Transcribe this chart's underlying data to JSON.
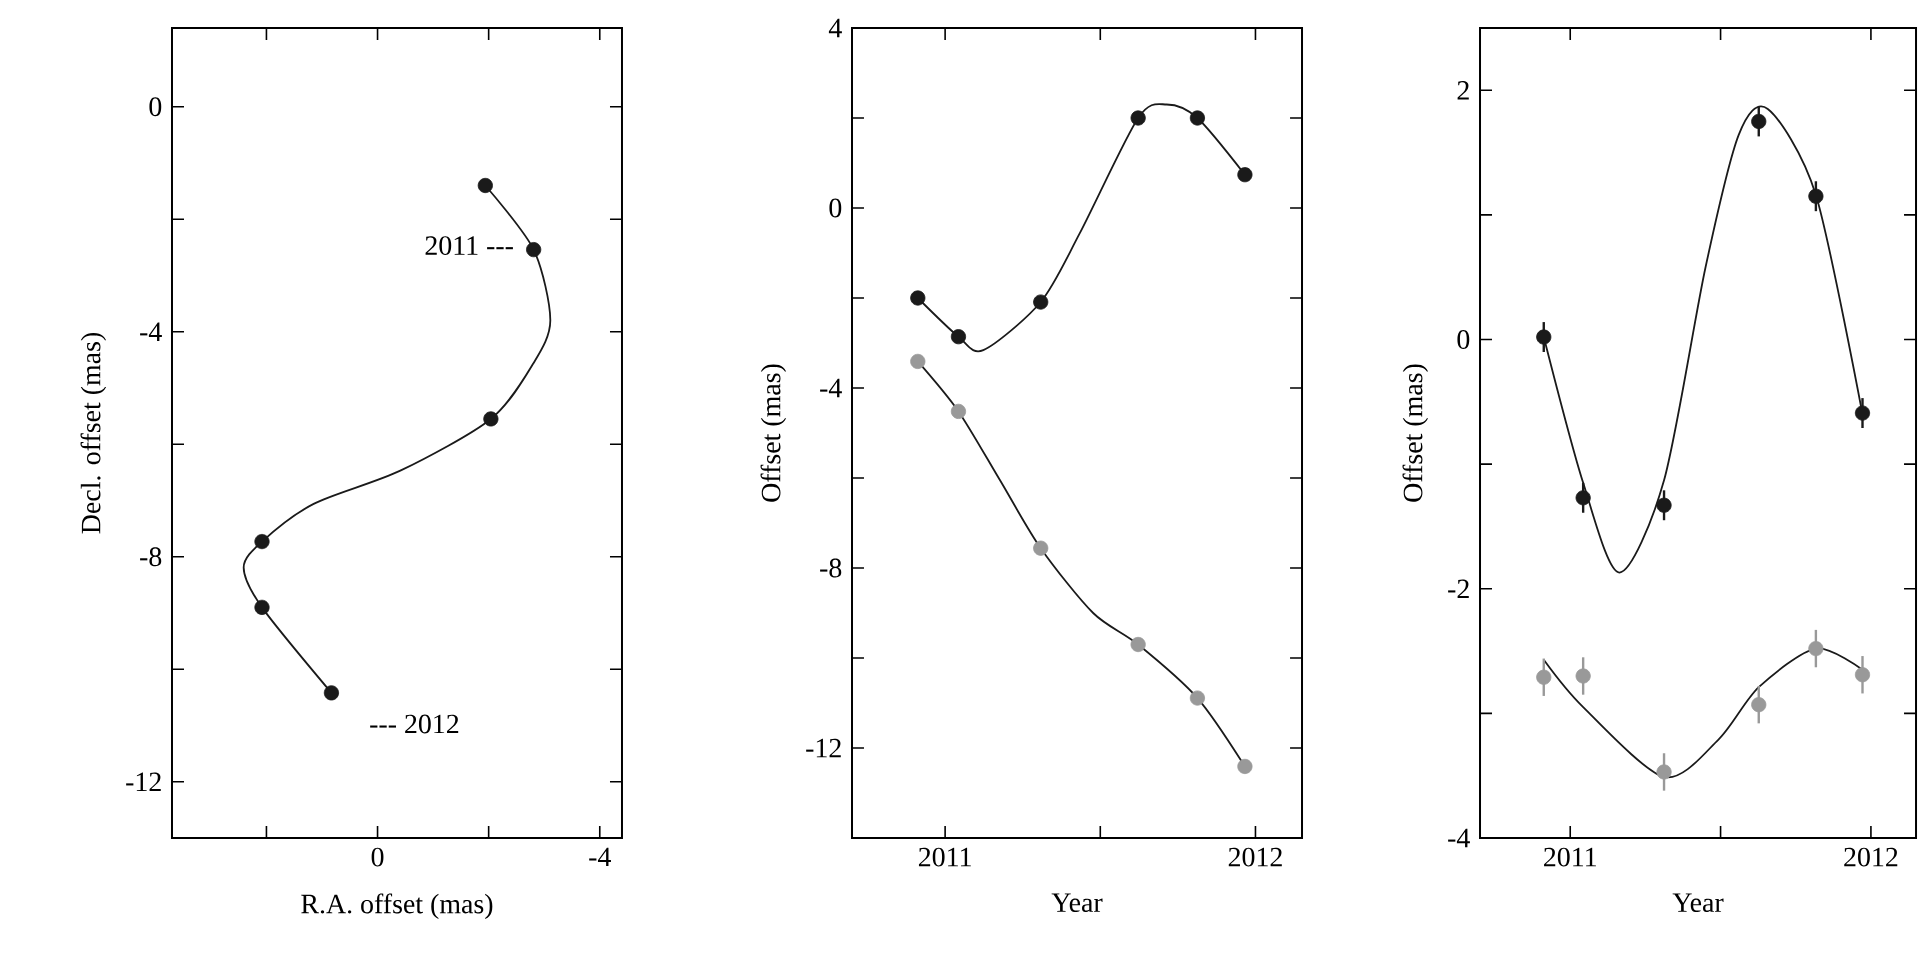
{
  "chart_data": [
    {
      "type": "scatter",
      "xlabel": "R.A. offset (mas)",
      "ylabel": "Decl. offset (mas)",
      "xlim": [
        3.7,
        -4.4
      ],
      "xticks": [
        {
          "value": 2,
          "label": null
        },
        0,
        {
          "value": -2,
          "label": null
        },
        -4
      ],
      "ylim": [
        -13,
        1.4
      ],
      "yticks": [
        0,
        {
          "value": -2,
          "label": null
        },
        -4,
        {
          "value": -6,
          "label": null
        },
        -8,
        {
          "value": -10,
          "label": null
        },
        -12
      ],
      "series": [
        {
          "type": "line",
          "marker": "none",
          "color": "#1a1a1a",
          "x": [
            -1.94,
            -2.81,
            -3.11,
            -2.8,
            -2.04,
            -0.41,
            1.15,
            2.08,
            2.41,
            2.08,
            0.83
          ],
          "values": [
            -1.4,
            -2.54,
            -3.8,
            -4.57,
            -5.55,
            -6.47,
            -7.06,
            -7.73,
            -8.19,
            -8.9,
            -10.42
          ]
        },
        {
          "marker": "circle",
          "color": "#1a1a1a",
          "x": [
            -1.94,
            -2.81,
            -2.04,
            2.08,
            2.08,
            0.83
          ],
          "values": [
            -1.4,
            -2.54,
            -5.55,
            -7.73,
            -8.9,
            -10.42
          ]
        }
      ],
      "annotations": [
        {
          "text": "2011 ---",
          "x": -2.81,
          "y": -2.54
        },
        {
          "text": "--- 2012",
          "x": 0.83,
          "y": -10.42
        }
      ]
    },
    {
      "type": "scatter",
      "xlabel": "Year",
      "ylabel": "Offset (mas)",
      "xlim": [
        2010.7,
        2012.15
      ],
      "xticks": [
        2011,
        {
          "value": 2011.5,
          "label": null
        },
        2012
      ],
      "ylim": [
        -14,
        4
      ],
      "yticks": [
        4,
        {
          "value": 2,
          "label": null
        },
        0,
        {
          "value": -2,
          "label": null
        },
        -4,
        {
          "value": -6,
          "label": null
        },
        -8,
        {
          "value": -10,
          "label": null
        },
        -12
      ],
      "series": [
        {
          "type": "line",
          "marker": "none",
          "color": "#1a1a1a",
          "x": [
            2010.912,
            2011.043,
            2011.123,
            2011.308,
            2011.434,
            2011.622,
            2011.714,
            2011.813,
            2011.966
          ],
          "values": [
            -2.0,
            -2.86,
            -3.16,
            -2.09,
            -0.56,
            2.0,
            2.3,
            2.0,
            0.74
          ]
        },
        {
          "type": "line",
          "marker": "none",
          "color": "#1a1a1a",
          "x": [
            2010.912,
            2011.043,
            2011.176,
            2011.308,
            2011.477,
            2011.622,
            2011.813,
            2011.966
          ],
          "values": [
            -3.41,
            -4.52,
            -6.04,
            -7.56,
            -9.0,
            -9.7,
            -10.89,
            -12.41
          ]
        },
        {
          "marker": "circle",
          "color": "#1a1a1a",
          "x": [
            2010.912,
            2011.043,
            2011.308,
            2011.622,
            2011.813,
            2011.966
          ],
          "values": [
            -2.0,
            -2.86,
            -2.09,
            2.0,
            2.0,
            0.74
          ]
        },
        {
          "marker": "circle",
          "color": "#999999",
          "x": [
            2010.912,
            2011.043,
            2011.308,
            2011.622,
            2011.813,
            2011.966
          ],
          "values": [
            -3.41,
            -4.52,
            -7.56,
            -9.7,
            -10.89,
            -12.41
          ]
        }
      ]
    },
    {
      "type": "scatter",
      "xlabel": "Year",
      "ylabel": "Offset (mas)",
      "xlim": [
        2010.7,
        2012.15
      ],
      "xticks": [
        2011,
        {
          "value": 2011.5,
          "label": null
        },
        2012
      ],
      "ylim": [
        -4,
        2.5
      ],
      "yticks": [
        2,
        {
          "value": 1,
          "label": null
        },
        0,
        {
          "value": -1,
          "label": null
        },
        -2,
        {
          "value": -3,
          "label": null
        },
        -4
      ],
      "series": [
        {
          "type": "line",
          "marker": "none",
          "color": "#1a1a1a",
          "x": [
            2010.912,
            2011.043,
            2011.164,
            2011.312,
            2011.45,
            2011.56,
            2011.657,
            2011.817,
            2011.972
          ],
          "values": [
            0.02,
            -1.15,
            -1.87,
            -1.13,
            0.58,
            1.64,
            1.85,
            1.16,
            -0.6
          ]
        },
        {
          "type": "line",
          "marker": "none",
          "color": "#1a1a1a",
          "x": [
            2010.912,
            2011.043,
            2011.312,
            2011.493,
            2011.627,
            2011.817,
            2011.972
          ],
          "values": [
            -2.57,
            -2.95,
            -3.51,
            -3.21,
            -2.79,
            -2.48,
            -2.65
          ]
        },
        {
          "marker": "circle",
          "color": "#1a1a1a",
          "x": [
            2010.912,
            2011.043,
            2011.312,
            2011.627,
            2011.817,
            2011.972
          ],
          "values": [
            0.02,
            -1.27,
            -1.33,
            1.75,
            1.15,
            -0.59
          ],
          "errors": [
            0.12,
            0.12,
            0.12,
            0.12,
            0.12,
            0.12
          ]
        },
        {
          "marker": "circle",
          "color": "#999999",
          "x": [
            2010.912,
            2011.043,
            2011.312,
            2011.627,
            2011.817,
            2011.972
          ],
          "values": [
            -2.71,
            -2.7,
            -3.47,
            -2.93,
            -2.48,
            -2.69
          ],
          "errors": [
            0.15,
            0.15,
            0.15,
            0.15,
            0.15,
            0.15
          ]
        }
      ]
    }
  ]
}
